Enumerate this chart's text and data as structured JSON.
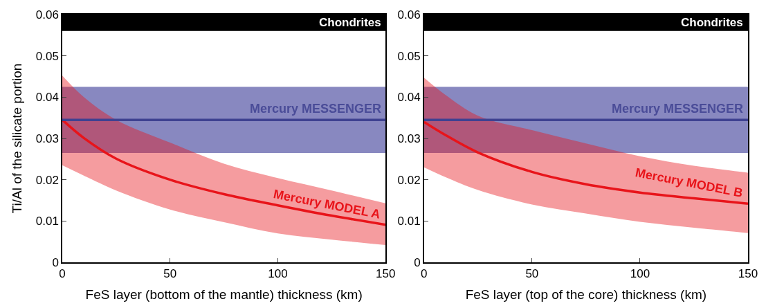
{
  "chart_data": [
    {
      "type": "line",
      "xlabel": "FeS layer (bottom of the mantle) thickness (km)",
      "ylabel": "Ti/Al of the silicate portion",
      "x": [
        0,
        10,
        25,
        50,
        75,
        100,
        125,
        150
      ],
      "series": [
        {
          "name": "Mercury MODEL A",
          "color": "#e8141a",
          "values": [
            0.0345,
            0.0301,
            0.0251,
            0.02,
            0.0165,
            0.0138,
            0.0113,
            0.0091
          ],
          "lower": [
            0.0235,
            0.021,
            0.0174,
            0.0128,
            0.0097,
            0.007,
            0.0055,
            0.0042
          ],
          "upper": [
            0.0452,
            0.04,
            0.0345,
            0.029,
            0.0239,
            0.0204,
            0.0174,
            0.0143
          ]
        }
      ],
      "ref_lines": [
        {
          "axis": "y",
          "value": 0.0345,
          "label": "Mercury MESSENGER",
          "color": "#3f4291"
        }
      ],
      "bands": [
        {
          "axis": "y",
          "from": 0.0265,
          "to": 0.0425,
          "color": "#8888c0"
        },
        {
          "axis": "y",
          "from": 0.056,
          "to": 0.06,
          "label": "Chondrites",
          "color": "#000000"
        }
      ],
      "xlim": [
        0,
        150
      ],
      "xticks": [
        0,
        50,
        100,
        150
      ],
      "ylim": [
        0,
        0.06
      ],
      "yticks": [
        0,
        0.01,
        0.02,
        0.03,
        0.04,
        0.05,
        0.06
      ],
      "grid": false,
      "legend": false
    },
    {
      "type": "line",
      "xlabel": "FeS layer (top of the core) thickness (km)",
      "x": [
        0,
        10,
        25,
        50,
        75,
        100,
        125,
        150
      ],
      "series": [
        {
          "name": "Mercury MODEL B",
          "color": "#e8141a",
          "values": [
            0.034,
            0.0308,
            0.0266,
            0.0219,
            0.0189,
            0.0169,
            0.0155,
            0.0142
          ],
          "lower": [
            0.023,
            0.0206,
            0.0175,
            0.014,
            0.0118,
            0.0098,
            0.0084,
            0.0071
          ],
          "upper": [
            0.0447,
            0.0405,
            0.0355,
            0.032,
            0.0288,
            0.0257,
            0.0234,
            0.0217
          ]
        }
      ],
      "ref_lines": [
        {
          "axis": "y",
          "value": 0.0345,
          "label": "Mercury MESSENGER",
          "color": "#3f4291"
        }
      ],
      "bands": [
        {
          "axis": "y",
          "from": 0.0265,
          "to": 0.0425,
          "color": "#8888c0"
        },
        {
          "axis": "y",
          "from": 0.056,
          "to": 0.06,
          "label": "Chondrites",
          "color": "#000000"
        }
      ],
      "xlim": [
        0,
        150
      ],
      "xticks": [
        0,
        50,
        100,
        150
      ],
      "ylim": [
        0,
        0.06
      ],
      "yticks": [
        0,
        0.01,
        0.02,
        0.03,
        0.04,
        0.05,
        0.06
      ],
      "grid": false,
      "legend": false
    }
  ]
}
